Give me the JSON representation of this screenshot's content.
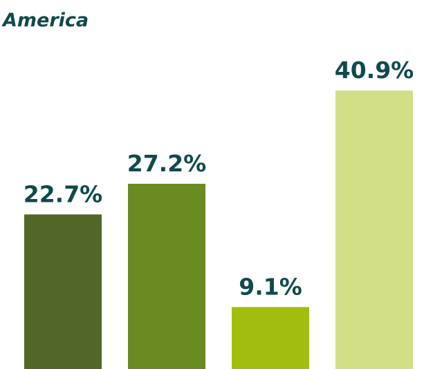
{
  "chart_data": {
    "type": "bar",
    "title": "America",
    "categories": [
      null,
      null,
      null,
      null
    ],
    "values": [
      22.7,
      27.2,
      9.1,
      40.9
    ],
    "value_labels": [
      "22.7%",
      "27.2%",
      "9.1%",
      "40.9%"
    ],
    "colors": [
      "#526628",
      "#6a8a22",
      "#a3bd0f",
      "#d3df87"
    ],
    "ylim": [
      0,
      41
    ]
  }
}
